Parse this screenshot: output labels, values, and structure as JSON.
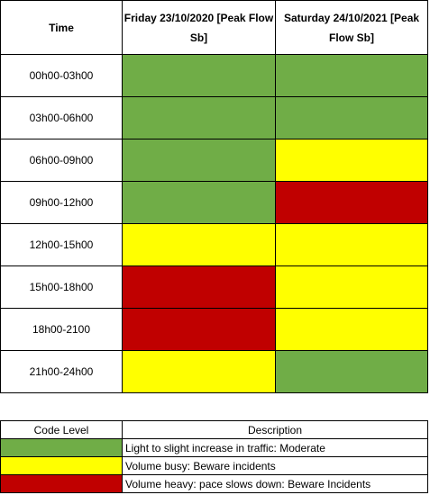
{
  "schedule": {
    "headers": {
      "time": "Time",
      "day1": "Friday 23/10/2020 [Peak Flow Sb]",
      "day2": "Saturday 24/10/2021 [Peak Flow Sb]"
    },
    "rows": [
      {
        "time": "00h00-03h00",
        "day1": "#70ad47",
        "day2": "#70ad47"
      },
      {
        "time": "03h00-06h00",
        "day1": "#70ad47",
        "day2": "#70ad47"
      },
      {
        "time": "06h00-09h00",
        "day1": "#70ad47",
        "day2": "#ffff00"
      },
      {
        "time": "09h00-12h00",
        "day1": "#70ad47",
        "day2": "#c00000"
      },
      {
        "time": "12h00-15h00",
        "day1": "#ffff00",
        "day2": "#ffff00"
      },
      {
        "time": "15h00-18h00",
        "day1": "#c00000",
        "day2": "#ffff00"
      },
      {
        "time": "18h00-2100",
        "day1": "#c00000",
        "day2": "#ffff00"
      },
      {
        "time": "21h00-24h00",
        "day1": "#ffff00",
        "day2": "#70ad47"
      }
    ]
  },
  "legend": {
    "headers": {
      "code": "Code Level",
      "description": "Description"
    },
    "items": [
      {
        "color": "#70ad47",
        "description": "Light to slight increase in traffic: Moderate"
      },
      {
        "color": "#ffff00",
        "description": "Volume busy: Beware incidents"
      },
      {
        "color": "#c00000",
        "description": "Volume heavy: pace slows down: Beware Incidents"
      }
    ]
  }
}
